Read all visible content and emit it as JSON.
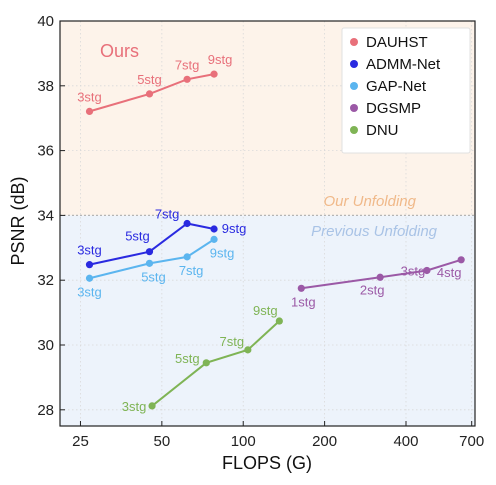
{
  "chart_data": {
    "type": "scatter",
    "xlabel": "FLOPS (G)",
    "ylabel": "PSNR (dB)",
    "xscale": "log",
    "xlim": [
      21,
      720
    ],
    "ylim": [
      27.5,
      40
    ],
    "xticks": [
      25,
      50,
      100,
      200,
      400,
      700
    ],
    "yticks": [
      28,
      30,
      32,
      34,
      36,
      38,
      40
    ],
    "grid": true,
    "legend_position": "top-right",
    "divider_y": 34,
    "annotations": {
      "ours": "Ours",
      "our_unfolding": "Our Unfolding",
      "previous_unfolding": "Previous Unfolding"
    },
    "series": [
      {
        "name": "DAUHST",
        "color": "#e8707a",
        "x": [
          27,
          45,
          62,
          78
        ],
        "y": [
          37.21,
          37.75,
          38.2,
          38.36
        ],
        "labels": [
          "3stg",
          "5stg",
          "7stg",
          "9stg"
        ]
      },
      {
        "name": "ADMM-Net",
        "color": "#2a2ae0",
        "x": [
          27,
          45,
          62,
          78
        ],
        "y": [
          32.48,
          32.88,
          33.75,
          33.58
        ],
        "labels": [
          "3stg",
          "5stg",
          "7stg",
          "9stg"
        ]
      },
      {
        "name": "GAP-Net",
        "color": "#5bb5ef",
        "x": [
          27,
          45,
          62,
          78
        ],
        "y": [
          32.06,
          32.52,
          32.72,
          33.26
        ],
        "labels": [
          "3stg",
          "5stg",
          "7stg",
          "9stg"
        ]
      },
      {
        "name": "DGSMP",
        "color": "#9b59a6",
        "x": [
          164,
          321,
          478,
          640
        ],
        "y": [
          31.75,
          32.09,
          32.3,
          32.63
        ],
        "labels": [
          "1stg",
          "2stg",
          "3stg",
          "4stg"
        ]
      },
      {
        "name": "DNU",
        "color": "#7fb455",
        "x": [
          46,
          73,
          104,
          136
        ],
        "y": [
          28.12,
          29.45,
          29.85,
          30.74
        ],
        "labels": [
          "3stg",
          "5stg",
          "7stg",
          "9stg"
        ]
      }
    ]
  }
}
